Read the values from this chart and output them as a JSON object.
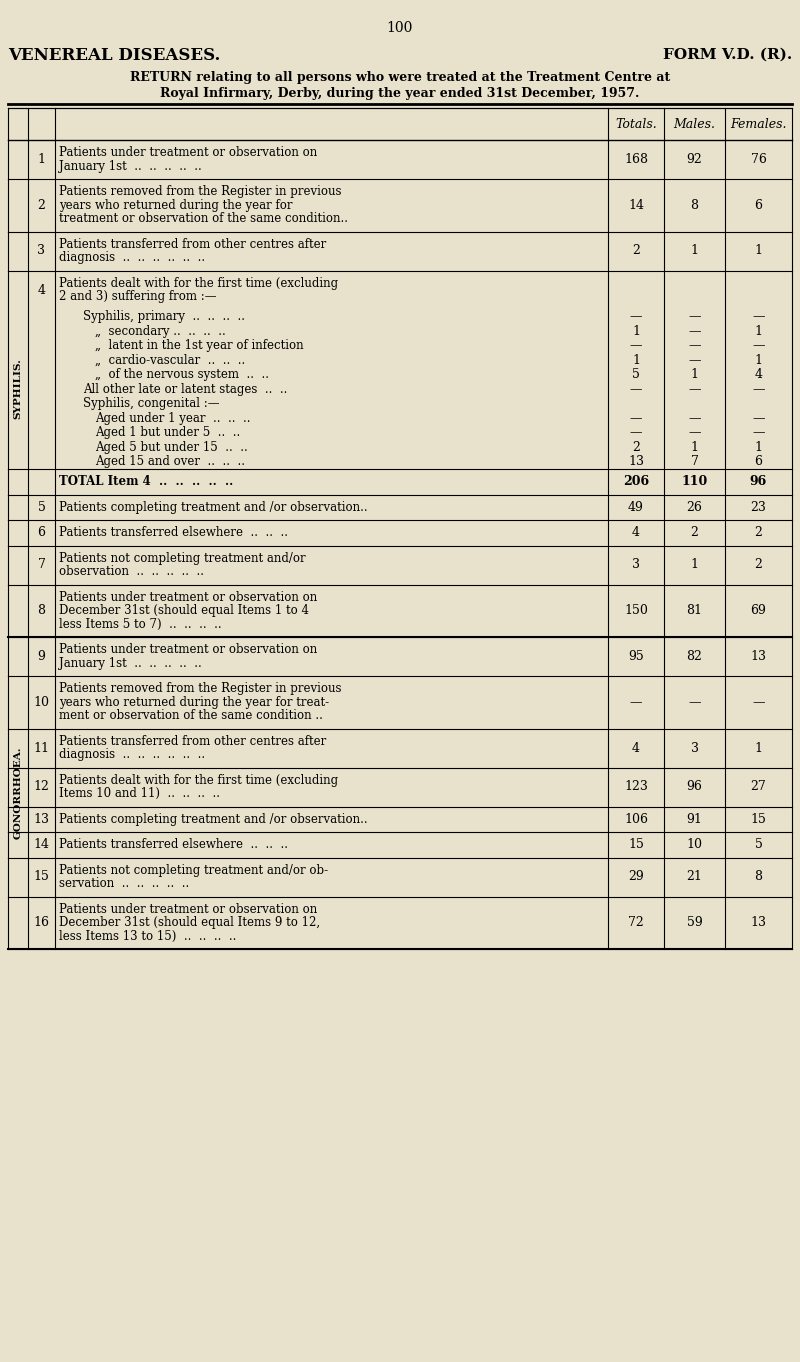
{
  "bg_color": "#e8e2cc",
  "page_number": "100",
  "title_left": "VENEREAL DISEASES.",
  "title_right": "FORM V.D. (R).",
  "subtitle1": "RETURN relating to all persons who were treated at the Treatment Centre at",
  "subtitle2": "Royal Infirmary, Derby, during the year ended 31st December, 1957.",
  "col_headers": [
    "Totals.",
    "Males.",
    "Females."
  ],
  "syphilis_label": "SYPHILIS.",
  "gonorrhoea_label": "GONORRHOEA.",
  "rows": [
    {
      "num": "1",
      "text_lines": [
        "Patients under treatment or observation on",
        "January 1st  ..  ..  ..  ..  .."
      ],
      "totals": "168",
      "males": "92",
      "females": "76",
      "section": "syphilis",
      "bold": false,
      "subrows": null
    },
    {
      "num": "2",
      "text_lines": [
        "Patients removed from the Register in previous",
        "years who returned during the year for",
        "treatment or observation of the same condition.."
      ],
      "totals": "14",
      "males": "8",
      "females": "6",
      "section": "syphilis",
      "bold": false,
      "subrows": null
    },
    {
      "num": "3",
      "text_lines": [
        "Patients transferred from other centres after",
        "diagnosis  ..  ..  ..  ..  ..  .."
      ],
      "totals": "2",
      "males": "1",
      "females": "1",
      "section": "syphilis",
      "bold": false,
      "subrows": null
    },
    {
      "num": "4",
      "text_lines": [
        "Patients dealt with for the first time (excluding",
        "2 and 3) suffering from :—"
      ],
      "totals": "",
      "males": "",
      "females": "",
      "section": "syphilis",
      "bold": false,
      "subrows": [
        {
          "indent": 2,
          "text": "Syphilis, primary  ..  ..  ..  ..",
          "totals": "—",
          "males": "—",
          "females": "—"
        },
        {
          "indent": 3,
          "text": "„  secondary ..  ..  ..  ..",
          "totals": "1",
          "males": "—",
          "females": "1"
        },
        {
          "indent": 3,
          "text": "„  latent in the 1st year of infection",
          "totals": "—",
          "males": "—",
          "females": "—"
        },
        {
          "indent": 3,
          "text": "„  cardio-vascular  ..  ..  ..",
          "totals": "1",
          "males": "—",
          "females": "1"
        },
        {
          "indent": 3,
          "text": "„  of the nervous system  ..  ..",
          "totals": "5",
          "males": "1",
          "females": "4"
        },
        {
          "indent": 2,
          "text": "All other late or latent stages  ..  ..",
          "totals": "—",
          "males": "—",
          "females": "—"
        },
        {
          "indent": 2,
          "text": "Syphilis, congenital :—",
          "totals": "",
          "males": "",
          "females": ""
        },
        {
          "indent": 3,
          "text": "Aged under 1 year  ..  ..  ..",
          "totals": "—",
          "males": "—",
          "females": "—"
        },
        {
          "indent": 3,
          "text": "Aged 1 but under 5  ..  ..",
          "totals": "—",
          "males": "—",
          "females": "—"
        },
        {
          "indent": 3,
          "text": "Aged 5 but under 15  ..  ..",
          "totals": "2",
          "males": "1",
          "females": "1"
        },
        {
          "indent": 3,
          "text": "Aged 15 and over  ..  ..  ..",
          "totals": "13",
          "males": "7",
          "females": "6"
        }
      ]
    },
    {
      "num": "",
      "text_lines": [
        "TOTAL Item 4  ..  ..  ..  ..  .."
      ],
      "totals": "206",
      "males": "110",
      "females": "96",
      "section": "syphilis",
      "bold": true,
      "subrows": null
    },
    {
      "num": "5",
      "text_lines": [
        "Patients completing treatment and /or observation.."
      ],
      "totals": "49",
      "males": "26",
      "females": "23",
      "section": "syphilis",
      "bold": false,
      "subrows": null
    },
    {
      "num": "6",
      "text_lines": [
        "Patients transferred elsewhere  ..  ..  .."
      ],
      "totals": "4",
      "males": "2",
      "females": "2",
      "section": "syphilis",
      "bold": false,
      "subrows": null
    },
    {
      "num": "7",
      "text_lines": [
        "Patients not completing treatment and/or",
        "observation  ..  ..  ..  ..  .."
      ],
      "totals": "3",
      "males": "1",
      "females": "2",
      "section": "syphilis",
      "bold": false,
      "subrows": null
    },
    {
      "num": "8",
      "text_lines": [
        "Patients under treatment or observation on",
        "December 31st (should equal Items 1 to 4",
        "less Items 5 to 7)  ..  ..  ..  .."
      ],
      "totals": "150",
      "males": "81",
      "females": "69",
      "section": "syphilis",
      "bold": false,
      "subrows": null
    },
    {
      "num": "9",
      "text_lines": [
        "Patients under treatment or observation on",
        "January 1st  ..  ..  ..  ..  .."
      ],
      "totals": "95",
      "males": "82",
      "females": "13",
      "section": "gonorrhoea",
      "bold": false,
      "subrows": null
    },
    {
      "num": "10",
      "text_lines": [
        "Patients removed from the Register in previous",
        "years who returned during the year for treat-",
        "ment or observation of the same condition .."
      ],
      "totals": "—",
      "males": "—",
      "females": "—",
      "section": "gonorrhoea",
      "bold": false,
      "subrows": null
    },
    {
      "num": "11",
      "text_lines": [
        "Patients transferred from other centres after",
        "diagnosis  ..  ..  ..  ..  ..  .."
      ],
      "totals": "4",
      "males": "3",
      "females": "1",
      "section": "gonorrhoea",
      "bold": false,
      "subrows": null
    },
    {
      "num": "12",
      "text_lines": [
        "Patients dealt with for the first time (excluding",
        "Items 10 and 11)  ..  ..  ..  .."
      ],
      "totals": "123",
      "males": "96",
      "females": "27",
      "section": "gonorrhoea",
      "bold": false,
      "subrows": null
    },
    {
      "num": "13",
      "text_lines": [
        "Patients completing treatment and /or observation.."
      ],
      "totals": "106",
      "males": "91",
      "females": "15",
      "section": "gonorrhoea",
      "bold": false,
      "subrows": null
    },
    {
      "num": "14",
      "text_lines": [
        "Patients transferred elsewhere  ..  ..  .."
      ],
      "totals": "15",
      "males": "10",
      "females": "5",
      "section": "gonorrhoea",
      "bold": false,
      "subrows": null
    },
    {
      "num": "15",
      "text_lines": [
        "Patients not completing treatment and/or ob-",
        "servation  ..  ..  ..  ..  .."
      ],
      "totals": "29",
      "males": "21",
      "females": "8",
      "section": "gonorrhoea",
      "bold": false,
      "subrows": null
    },
    {
      "num": "16",
      "text_lines": [
        "Patients under treatment or observation on",
        "December 31st (should equal Items 9 to 12,",
        "less Items 13 to 15)  ..  ..  ..  .."
      ],
      "totals": "72",
      "males": "59",
      "females": "13",
      "section": "gonorrhoea",
      "bold": false,
      "subrows": null
    }
  ]
}
